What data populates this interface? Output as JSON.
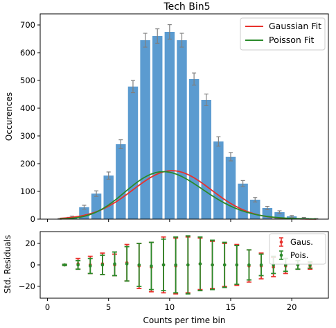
{
  "chart_data": [
    {
      "type": "bar",
      "title": "Tech Bin5",
      "xlabel": "",
      "ylabel": "Occurences",
      "xlim": [
        -0.6,
        23.0
      ],
      "ylim": [
        0,
        740
      ],
      "yticks": [
        0,
        100,
        200,
        300,
        400,
        500,
        600,
        700
      ],
      "xticks": [
        0,
        5,
        10,
        15,
        20
      ],
      "grid": false,
      "legend_position": "top-right",
      "bar_color": "#5b9bd0",
      "bars": {
        "x": [
          1,
          2,
          3,
          4,
          5,
          6,
          7,
          8,
          9,
          10,
          11,
          12,
          13,
          14,
          15,
          16,
          17,
          18,
          19,
          20,
          21,
          22
        ],
        "values": [
          1,
          8,
          43,
          92,
          157,
          270,
          478,
          645,
          660,
          675,
          645,
          505,
          430,
          280,
          225,
          128,
          70,
          40,
          25,
          10,
          4,
          1
        ],
        "errors": [
          1,
          3,
          7,
          10,
          13,
          16,
          22,
          25,
          26,
          26,
          25,
          22,
          21,
          17,
          15,
          11,
          8,
          6,
          5,
          3,
          2,
          1
        ]
      },
      "series": [
        {
          "name": "Gaussian Fit",
          "color": "#e8312c",
          "model": "gaussian",
          "mean": 10.2,
          "sigma": 3.2,
          "scale": 1400
        },
        {
          "name": "Poisson Fit",
          "color": "#2a8a2a",
          "model": "poisson",
          "mean": 10.0,
          "scale": 1350
        }
      ]
    },
    {
      "type": "scatter",
      "title": "",
      "xlabel": "Counts per time bin",
      "ylabel": "Std. Residuals",
      "xlim": [
        -0.6,
        23.0
      ],
      "ylim": [
        -31,
        31
      ],
      "yticks": [
        -20,
        0,
        20
      ],
      "xticks": [
        0,
        5,
        10,
        15,
        20
      ],
      "grid": false,
      "legend_position": "top-right",
      "series": [
        {
          "name": "Gaus.",
          "color": "#e8312c",
          "x": [
            1.4,
            2.5,
            3.5,
            4.5,
            5.5,
            6.5,
            7.5,
            8.5,
            9.5,
            10.5,
            11.5,
            12.5,
            13.5,
            14.5,
            15.5,
            16.5,
            17.5,
            18.5,
            19.5,
            20.5,
            21.5
          ],
          "y": [
            0,
            1,
            0,
            1,
            0,
            2,
            -1,
            -2,
            0,
            -1,
            0,
            1,
            0,
            0,
            0,
            -1,
            -1,
            -2,
            -1,
            0,
            -1
          ],
          "err": [
            0.5,
            5,
            8,
            10,
            10,
            17,
            21,
            23,
            26,
            26,
            26,
            24,
            22,
            20,
            19,
            15,
            12,
            9,
            7,
            4,
            3
          ]
        },
        {
          "name": "Pois.",
          "color": "#2a8a2a",
          "x": [
            1.4,
            2.5,
            3.5,
            4.5,
            5.5,
            6.5,
            7.5,
            8.5,
            9.5,
            10.5,
            11.5,
            12.5,
            13.5,
            14.5,
            15.5,
            16.5,
            17.5,
            18.5,
            19.5,
            20.5,
            21.5
          ],
          "y": [
            0,
            0,
            -1,
            0,
            1,
            1,
            0,
            -1,
            0,
            0,
            0,
            1,
            0,
            0,
            0,
            0,
            0,
            0,
            0,
            0,
            0
          ],
          "err": [
            0.5,
            4,
            7,
            9,
            11,
            16,
            20,
            22,
            24,
            26,
            27,
            25,
            23,
            21,
            18,
            14,
            10,
            8,
            6,
            4,
            3
          ]
        }
      ]
    }
  ]
}
